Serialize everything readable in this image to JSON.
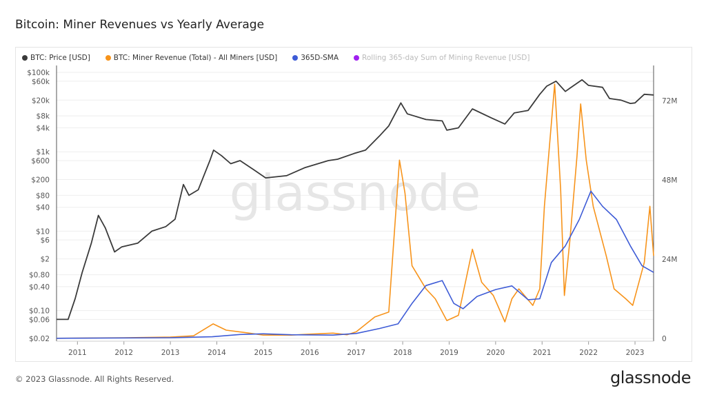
{
  "title": "Bitcoin: Miner Revenues vs Yearly Average",
  "footer": "© 2023 Glassnode. All Rights Reserved.",
  "logo": "glassnode",
  "watermark": "glassnode",
  "chart_data": {
    "type": "line",
    "title": "Bitcoin: Miner Revenues vs Yearly Average",
    "legend_placement": "top-left",
    "grid": true,
    "x_ticks": [
      "2011",
      "2012",
      "2013",
      "2014",
      "2015",
      "2016",
      "2017",
      "2018",
      "2019",
      "2020",
      "2021",
      "2022",
      "2023"
    ],
    "xlim": [
      2010.55,
      2023.4
    ],
    "y_left": {
      "scale": "log",
      "ticks": [
        [
          "$100k",
          100000
        ],
        [
          "$60k",
          60000
        ],
        [
          "$20k",
          20000
        ],
        [
          "$8k",
          8000
        ],
        [
          "$4k",
          4000
        ],
        [
          "$1k",
          1000
        ],
        [
          "$600",
          600
        ],
        [
          "$200",
          200
        ],
        [
          "$80",
          80
        ],
        [
          "$40",
          40
        ],
        [
          "$10",
          10
        ],
        [
          "$6",
          6
        ],
        [
          "$2",
          2
        ],
        [
          "$0.80",
          0.8
        ],
        [
          "$0.40",
          0.4
        ],
        [
          "$0.10",
          0.1
        ],
        [
          "$0.06",
          0.06
        ],
        [
          "$0.02",
          0.02
        ]
      ]
    },
    "y_right": {
      "scale": "linear",
      "ticks": [
        [
          "0",
          0
        ],
        [
          "24M",
          24000000
        ],
        [
          "48M",
          48000000
        ],
        [
          "72M",
          72000000
        ]
      ],
      "ylim": [
        0,
        86000000
      ]
    },
    "series": [
      {
        "name": "BTC: Price [USD]",
        "color": "#3a3a3a",
        "axis": "left",
        "points": [
          [
            2010.55,
            0.06
          ],
          [
            2010.8,
            0.06
          ],
          [
            2010.95,
            0.2
          ],
          [
            2011.1,
            0.9
          ],
          [
            2011.3,
            5
          ],
          [
            2011.45,
            25
          ],
          [
            2011.6,
            12
          ],
          [
            2011.8,
            3
          ],
          [
            2011.95,
            4
          ],
          [
            2012.3,
            5
          ],
          [
            2012.6,
            10
          ],
          [
            2012.9,
            13
          ],
          [
            2013.1,
            20
          ],
          [
            2013.28,
            150
          ],
          [
            2013.4,
            80
          ],
          [
            2013.6,
            110
          ],
          [
            2013.85,
            600
          ],
          [
            2013.93,
            1100
          ],
          [
            2014.1,
            800
          ],
          [
            2014.3,
            500
          ],
          [
            2014.5,
            600
          ],
          [
            2014.8,
            350
          ],
          [
            2015.05,
            220
          ],
          [
            2015.5,
            250
          ],
          [
            2015.9,
            400
          ],
          [
            2016.4,
            600
          ],
          [
            2016.6,
            650
          ],
          [
            2016.95,
            900
          ],
          [
            2017.2,
            1100
          ],
          [
            2017.5,
            2500
          ],
          [
            2017.7,
            4500
          ],
          [
            2017.96,
            17000
          ],
          [
            2018.1,
            9000
          ],
          [
            2018.5,
            6500
          ],
          [
            2018.85,
            6000
          ],
          [
            2018.95,
            3500
          ],
          [
            2019.2,
            4000
          ],
          [
            2019.5,
            12000
          ],
          [
            2019.9,
            7200
          ],
          [
            2020.2,
            5000
          ],
          [
            2020.4,
            9500
          ],
          [
            2020.7,
            11000
          ],
          [
            2020.95,
            28000
          ],
          [
            2021.1,
            45000
          ],
          [
            2021.3,
            60000
          ],
          [
            2021.5,
            33000
          ],
          [
            2021.6,
            40000
          ],
          [
            2021.86,
            65000
          ],
          [
            2022.0,
            47000
          ],
          [
            2022.3,
            42000
          ],
          [
            2022.45,
            22000
          ],
          [
            2022.7,
            20000
          ],
          [
            2022.9,
            16500
          ],
          [
            2023.0,
            17000
          ],
          [
            2023.2,
            28000
          ],
          [
            2023.4,
            27000
          ]
        ]
      },
      {
        "name": "BTC: Miner Revenue (Total) - All Miners [USD]",
        "color": "#f7931a",
        "axis": "right",
        "points": [
          [
            2010.55,
            0.05
          ],
          [
            2012.0,
            0.2
          ],
          [
            2013.0,
            0.4
          ],
          [
            2013.5,
            0.8
          ],
          [
            2013.92,
            4.4
          ],
          [
            2014.2,
            2.5
          ],
          [
            2014.6,
            1.8
          ],
          [
            2015.0,
            1.0
          ],
          [
            2015.6,
            1.0
          ],
          [
            2016.0,
            1.3
          ],
          [
            2016.5,
            1.6
          ],
          [
            2016.8,
            1.1
          ],
          [
            2017.0,
            2
          ],
          [
            2017.4,
            6.5
          ],
          [
            2017.7,
            8
          ],
          [
            2017.93,
            54
          ],
          [
            2018.05,
            44
          ],
          [
            2018.2,
            22
          ],
          [
            2018.5,
            15
          ],
          [
            2018.7,
            12
          ],
          [
            2018.95,
            5.4
          ],
          [
            2019.2,
            7
          ],
          [
            2019.5,
            27
          ],
          [
            2019.7,
            17
          ],
          [
            2019.95,
            13
          ],
          [
            2020.2,
            5
          ],
          [
            2020.35,
            12
          ],
          [
            2020.5,
            15
          ],
          [
            2020.8,
            10
          ],
          [
            2020.95,
            15
          ],
          [
            2021.05,
            40
          ],
          [
            2021.27,
            77
          ],
          [
            2021.4,
            45
          ],
          [
            2021.48,
            13
          ],
          [
            2021.6,
            30
          ],
          [
            2021.75,
            55
          ],
          [
            2021.83,
            71
          ],
          [
            2021.95,
            54
          ],
          [
            2022.1,
            40
          ],
          [
            2022.38,
            25
          ],
          [
            2022.55,
            15
          ],
          [
            2022.8,
            12
          ],
          [
            2022.95,
            10
          ],
          [
            2023.2,
            23
          ],
          [
            2023.32,
            40
          ],
          [
            2023.4,
            25
          ]
        ]
      },
      {
        "name": "365D-SMA",
        "color": "#3d5bd6",
        "axis": "right",
        "points": [
          [
            2010.55,
            0.05
          ],
          [
            2013.0,
            0.2
          ],
          [
            2013.9,
            0.5
          ],
          [
            2014.5,
            1.2
          ],
          [
            2015.0,
            1.4
          ],
          [
            2015.6,
            1.1
          ],
          [
            2016.5,
            1.0
          ],
          [
            2017.0,
            1.5
          ],
          [
            2017.5,
            3
          ],
          [
            2017.9,
            4.4
          ],
          [
            2018.2,
            10.6
          ],
          [
            2018.5,
            16
          ],
          [
            2018.85,
            17.5
          ],
          [
            2019.1,
            10.6
          ],
          [
            2019.3,
            9
          ],
          [
            2019.6,
            12.7
          ],
          [
            2020.0,
            14.8
          ],
          [
            2020.35,
            15.9
          ],
          [
            2020.7,
            11.7
          ],
          [
            2020.95,
            12
          ],
          [
            2021.2,
            23
          ],
          [
            2021.5,
            28
          ],
          [
            2021.8,
            36
          ],
          [
            2022.05,
            44.6
          ],
          [
            2022.3,
            40
          ],
          [
            2022.6,
            36
          ],
          [
            2022.9,
            28
          ],
          [
            2023.15,
            22
          ],
          [
            2023.4,
            20
          ]
        ]
      },
      {
        "name": "Rolling 365-day Sum of Mining Revenue [USD]",
        "color": "#a020f0",
        "axis": "right",
        "hidden": true,
        "points": []
      }
    ],
    "revenue_units": "millions USD"
  }
}
